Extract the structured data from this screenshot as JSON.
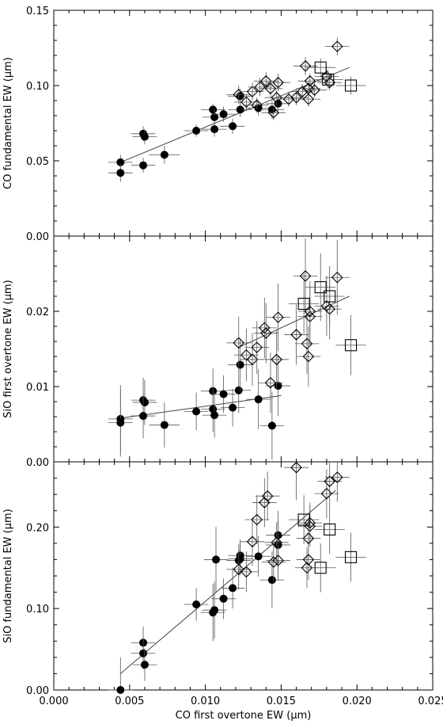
{
  "chart_data": [
    {
      "type": "scatter",
      "ylabel": "CO fundamental EW (μm)",
      "xlim": [
        0.0,
        0.025
      ],
      "ylim": [
        0.0,
        0.15
      ],
      "yticks": [
        "0.00",
        "0.05",
        "0.10",
        "0.15"
      ],
      "fit_line": [
        [
          0.0044,
          0.049
        ],
        [
          0.0195,
          0.112
        ]
      ],
      "series": [
        {
          "marker": "filled-circle",
          "points": [
            [
              0.0044,
              0.049,
              0.0008,
              0.005
            ],
            [
              0.0044,
              0.042,
              0.0008,
              0.006
            ],
            [
              0.0059,
              0.068,
              0.0008,
              0.005
            ],
            [
              0.006,
              0.066,
              0.0008,
              0.005
            ],
            [
              0.0059,
              0.047,
              0.0008,
              0.005
            ],
            [
              0.0073,
              0.054,
              0.001,
              0.006
            ],
            [
              0.0094,
              0.07,
              0.0008,
              0.004
            ],
            [
              0.0105,
              0.084,
              0.0008,
              0.004
            ],
            [
              0.0106,
              0.079,
              0.0008,
              0.005
            ],
            [
              0.0106,
              0.071,
              0.0008,
              0.005
            ],
            [
              0.0112,
              0.081,
              0.0008,
              0.005
            ],
            [
              0.0118,
              0.073,
              0.0008,
              0.005
            ],
            [
              0.0123,
              0.093,
              0.0008,
              0.005
            ],
            [
              0.0123,
              0.084,
              0.0008,
              0.005
            ],
            [
              0.0135,
              0.085,
              0.0008,
              0.005
            ],
            [
              0.0144,
              0.084,
              0.0008,
              0.006
            ],
            [
              0.0148,
              0.088,
              0.0008,
              0.005
            ]
          ]
        },
        {
          "marker": "open-diamond",
          "points": [
            [
              0.0122,
              0.094,
              0.0008,
              0.006
            ],
            [
              0.0127,
              0.089,
              0.0008,
              0.005
            ],
            [
              0.0131,
              0.096,
              0.0008,
              0.006
            ],
            [
              0.0134,
              0.087,
              0.0008,
              0.005
            ],
            [
              0.0136,
              0.099,
              0.0008,
              0.006
            ],
            [
              0.014,
              0.103,
              0.0008,
              0.006
            ],
            [
              0.0143,
              0.098,
              0.0008,
              0.006
            ],
            [
              0.0145,
              0.082,
              0.0008,
              0.005
            ],
            [
              0.0147,
              0.092,
              0.0008,
              0.005
            ],
            [
              0.0148,
              0.102,
              0.0008,
              0.006
            ],
            [
              0.0155,
              0.091,
              0.0008,
              0.005
            ],
            [
              0.016,
              0.092,
              0.0008,
              0.005
            ],
            [
              0.0164,
              0.096,
              0.0008,
              0.005
            ],
            [
              0.0166,
              0.113,
              0.0008,
              0.006
            ],
            [
              0.0168,
              0.091,
              0.0008,
              0.005
            ],
            [
              0.0168,
              0.098,
              0.0008,
              0.005
            ],
            [
              0.0169,
              0.103,
              0.0008,
              0.005
            ],
            [
              0.0172,
              0.097,
              0.0008,
              0.005
            ],
            [
              0.018,
              0.106,
              0.0008,
              0.005
            ],
            [
              0.0182,
              0.102,
              0.0008,
              0.005
            ],
            [
              0.0187,
              0.126,
              0.0008,
              0.006
            ]
          ]
        },
        {
          "marker": "open-square",
          "points": [
            [
              0.0176,
              0.112,
              0.001,
              0.006
            ],
            [
              0.0181,
              0.104,
              0.001,
              0.006
            ],
            [
              0.0196,
              0.1,
              0.001,
              0.006
            ]
          ]
        }
      ]
    },
    {
      "type": "scatter",
      "ylabel": "SiO first overtone EW (μm)",
      "xlim": [
        0.0,
        0.025
      ],
      "ylim": [
        0.0,
        0.03
      ],
      "yticks": [
        "0.00",
        "0.01",
        "0.02"
      ],
      "fit_lines": [
        [
          [
            0.0044,
            0.0058
          ],
          [
            0.015,
            0.0088
          ]
        ],
        [
          [
            0.0122,
            0.0152
          ],
          [
            0.0195,
            0.022
          ]
        ]
      ],
      "series": [
        {
          "marker": "filled-circle",
          "points": [
            [
              0.0044,
              0.0057,
              0.0008,
              0.0045
            ],
            [
              0.0044,
              0.0052,
              0.0008,
              0.0045
            ],
            [
              0.0059,
              0.0082,
              0.0008,
              0.003
            ],
            [
              0.006,
              0.0079,
              0.0008,
              0.003
            ],
            [
              0.0059,
              0.0061,
              0.0008,
              0.003
            ],
            [
              0.0073,
              0.0049,
              0.001,
              0.003
            ],
            [
              0.0094,
              0.0067,
              0.0008,
              0.0025
            ],
            [
              0.0105,
              0.0094,
              0.0008,
              0.003
            ],
            [
              0.0105,
              0.007,
              0.0008,
              0.003
            ],
            [
              0.0106,
              0.0062,
              0.0008,
              0.003
            ],
            [
              0.0112,
              0.009,
              0.0008,
              0.0025
            ],
            [
              0.0118,
              0.0072,
              0.0008,
              0.0025
            ],
            [
              0.0122,
              0.0095,
              0.0008,
              0.003
            ],
            [
              0.0123,
              0.0129,
              0.0008,
              0.0035
            ],
            [
              0.0135,
              0.0083,
              0.0008,
              0.004
            ],
            [
              0.0144,
              0.0048,
              0.0008,
              0.0045
            ],
            [
              0.0148,
              0.0101,
              0.0008,
              0.004
            ]
          ]
        },
        {
          "marker": "open-diamond",
          "points": [
            [
              0.0122,
              0.0158,
              0.0008,
              0.0035
            ],
            [
              0.0127,
              0.0142,
              0.0008,
              0.0035
            ],
            [
              0.0131,
              0.0136,
              0.0008,
              0.0035
            ],
            [
              0.0134,
              0.0152,
              0.0008,
              0.0035
            ],
            [
              0.0139,
              0.0178,
              0.0008,
              0.004
            ],
            [
              0.014,
              0.0171,
              0.0008,
              0.004
            ],
            [
              0.0143,
              0.0105,
              0.0008,
              0.004
            ],
            [
              0.0147,
              0.0136,
              0.0008,
              0.004
            ],
            [
              0.0148,
              0.0192,
              0.0008,
              0.0045
            ],
            [
              0.016,
              0.0169,
              0.0008,
              0.004
            ],
            [
              0.0166,
              0.0247,
              0.0008,
              0.005
            ],
            [
              0.0167,
              0.0157,
              0.0008,
              0.004
            ],
            [
              0.0168,
              0.014,
              0.0008,
              0.004
            ],
            [
              0.0169,
              0.0193,
              0.0008,
              0.004
            ],
            [
              0.0169,
              0.02,
              0.0008,
              0.004
            ],
            [
              0.018,
              0.0207,
              0.0008,
              0.004
            ],
            [
              0.0182,
              0.0203,
              0.0008,
              0.004
            ],
            [
              0.0187,
              0.0245,
              0.0008,
              0.005
            ]
          ]
        },
        {
          "marker": "open-square",
          "points": [
            [
              0.0165,
              0.021,
              0.001,
              0.004
            ],
            [
              0.0176,
              0.0232,
              0.001,
              0.0045
            ],
            [
              0.0182,
              0.022,
              0.001,
              0.004
            ],
            [
              0.0196,
              0.0155,
              0.001,
              0.004
            ]
          ]
        }
      ]
    },
    {
      "type": "scatter",
      "xlabel": "CO first overtone EW (μm)",
      "ylabel": "SiO fundamental EW (μm)",
      "xlim": [
        0.0,
        0.025
      ],
      "ylim": [
        0.0,
        0.28
      ],
      "xticks": [
        "0.000",
        "0.005",
        "0.010",
        "0.015",
        "0.020",
        "0.025"
      ],
      "yticks": [
        "0.00",
        "0.10",
        "0.20"
      ],
      "fit_line": [
        [
          0.0044,
          0.02
        ],
        [
          0.0186,
          0.245
        ]
      ],
      "series": [
        {
          "marker": "filled-circle",
          "points": [
            [
              0.0044,
              0.0,
              0.0008,
              0.04
            ],
            [
              0.0059,
              0.058,
              0.0008,
              0.02
            ],
            [
              0.0059,
              0.045,
              0.0008,
              0.02
            ],
            [
              0.006,
              0.031,
              0.0008,
              0.02
            ],
            [
              0.0094,
              0.105,
              0.0008,
              0.02
            ],
            [
              0.0105,
              0.095,
              0.0008,
              0.035
            ],
            [
              0.0106,
              0.098,
              0.0008,
              0.035
            ],
            [
              0.0107,
              0.16,
              0.0008,
              0.04
            ],
            [
              0.0112,
              0.112,
              0.0008,
              0.025
            ],
            [
              0.0118,
              0.125,
              0.0008,
              0.025
            ],
            [
              0.0122,
              0.159,
              0.0008,
              0.02
            ],
            [
              0.0123,
              0.165,
              0.0008,
              0.02
            ],
            [
              0.0123,
              0.161,
              0.0008,
              0.02
            ],
            [
              0.0135,
              0.164,
              0.0008,
              0.025
            ],
            [
              0.0144,
              0.135,
              0.0008,
              0.035
            ],
            [
              0.0148,
              0.19,
              0.0008,
              0.03
            ],
            [
              0.0148,
              0.178,
              0.0008,
              0.03
            ]
          ]
        },
        {
          "marker": "open-diamond",
          "points": [
            [
              0.0122,
              0.148,
              0.0008,
              0.025
            ],
            [
              0.0127,
              0.145,
              0.0008,
              0.025
            ],
            [
              0.0131,
              0.182,
              0.0008,
              0.03
            ],
            [
              0.0134,
              0.209,
              0.0008,
              0.03
            ],
            [
              0.0139,
              0.23,
              0.0008,
              0.03
            ],
            [
              0.0141,
              0.238,
              0.0008,
              0.03
            ],
            [
              0.0145,
              0.157,
              0.0008,
              0.025
            ],
            [
              0.0147,
              0.181,
              0.0008,
              0.025
            ],
            [
              0.0148,
              0.159,
              0.0008,
              0.025
            ],
            [
              0.016,
              0.273,
              0.0008,
              0.04
            ],
            [
              0.0167,
              0.15,
              0.0008,
              0.025
            ],
            [
              0.0168,
              0.16,
              0.0008,
              0.025
            ],
            [
              0.0168,
              0.186,
              0.0008,
              0.025
            ],
            [
              0.0169,
              0.201,
              0.0008,
              0.025
            ],
            [
              0.0169,
              0.205,
              0.0008,
              0.025
            ],
            [
              0.018,
              0.241,
              0.0008,
              0.03
            ],
            [
              0.0182,
              0.256,
              0.0008,
              0.03
            ],
            [
              0.0187,
              0.261,
              0.0008,
              0.03
            ]
          ]
        },
        {
          "marker": "open-square",
          "points": [
            [
              0.0165,
              0.209,
              0.001,
              0.03
            ],
            [
              0.0176,
              0.15,
              0.001,
              0.03
            ],
            [
              0.0182,
              0.197,
              0.001,
              0.03
            ],
            [
              0.0196,
              0.163,
              0.001,
              0.03
            ]
          ]
        }
      ]
    }
  ]
}
